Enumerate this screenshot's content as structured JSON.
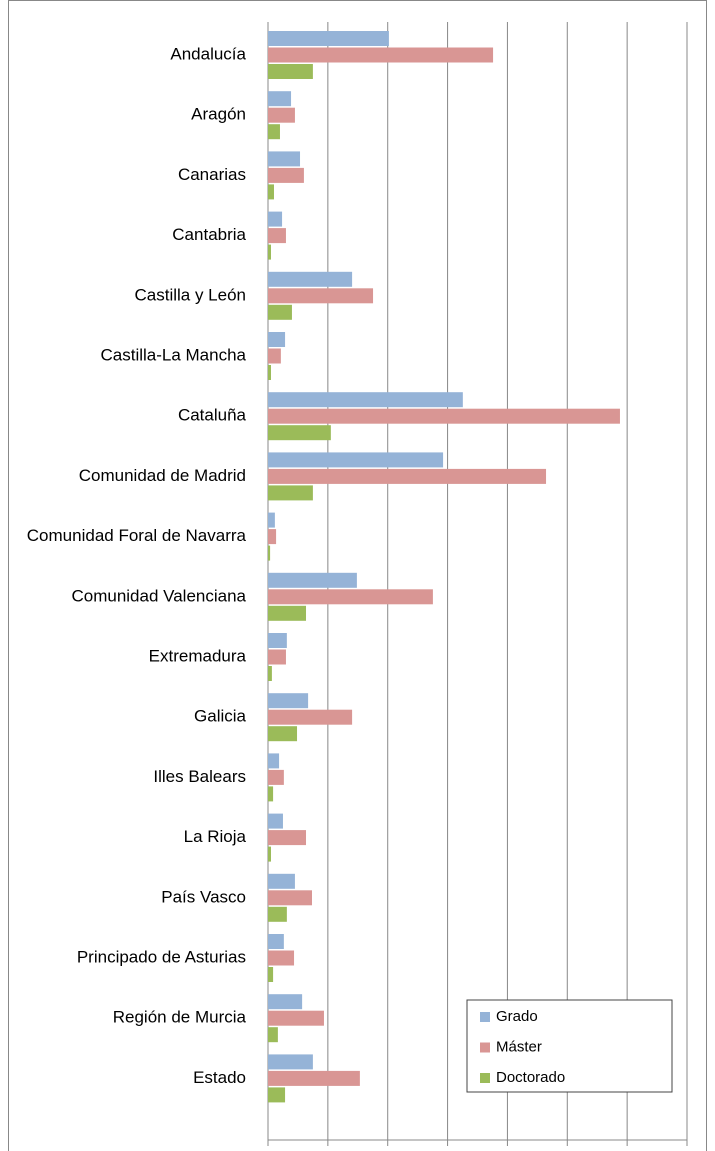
{
  "chart_data": {
    "type": "bar",
    "orientation": "horizontal",
    "categories": [
      "Andalucía",
      "Aragón",
      "Canarias",
      "Cantabria",
      "Castilla y León",
      "Castilla-La Mancha",
      "Cataluña",
      "Comunidad de Madrid",
      "Comunidad Foral de Navarra",
      "Comunidad Valenciana",
      "Extremadura",
      "Galicia",
      "Illes Balears",
      "La Rioja",
      "País Vasco",
      "Principado de Asturias",
      "Región de Murcia",
      "Estado"
    ],
    "series": [
      {
        "name": "Grado",
        "color": "#95b3d7",
        "values": [
          404,
          77,
          107,
          47,
          281,
          57,
          651,
          585,
          23,
          297,
          63,
          134,
          37,
          50,
          90,
          53,
          114,
          150
        ]
      },
      {
        "name": "Máster",
        "color": "#d99694",
        "values": [
          752,
          90,
          120,
          60,
          351,
          43,
          1176,
          929,
          27,
          551,
          60,
          281,
          53,
          127,
          147,
          87,
          187,
          307
        ]
      },
      {
        "name": "Doctorado",
        "color": "#9bbb59",
        "values": [
          150,
          40,
          20,
          10,
          80,
          10,
          210,
          150,
          7,
          127,
          13,
          97,
          17,
          10,
          63,
          17,
          33,
          57
        ]
      }
    ],
    "xlim": [
      0,
      1400
    ],
    "xticks": [
      0,
      200,
      400,
      600,
      800,
      {
        "value": 1000,
        "label": "1.000"
      },
      {
        "value": 1200,
        "label": "1.200"
      },
      {
        "value": 1400,
        "label": "1.400"
      }
    ],
    "grid": true,
    "legend": "lower right"
  }
}
